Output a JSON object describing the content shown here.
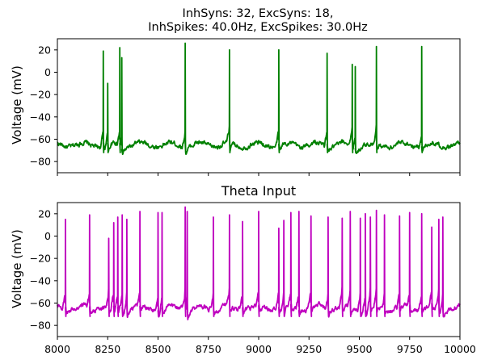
{
  "chart_data": [
    {
      "type": "line",
      "title_lines": [
        "InhSyns: 32, ExcSyns: 18,",
        "InhSpikes: 40.0Hz, ExcSpikes: 30.0Hz"
      ],
      "xlabel": "",
      "ylabel": "Voltage (mV)",
      "xlim": [
        8000,
        10000
      ],
      "ylim": [
        -90,
        30
      ],
      "yticks": [
        20,
        0,
        -20,
        -40,
        -60,
        -80
      ],
      "xticks": [
        8000,
        8250,
        8500,
        8750,
        9000,
        9250,
        9500,
        9750,
        10000
      ],
      "xtick_labels_visible": false,
      "color": "#008000",
      "grid": false,
      "baseline_mv": -65,
      "spikes": [
        {
          "t": 8228,
          "peak": 19
        },
        {
          "t": 8250,
          "peak": -10
        },
        {
          "t": 8310,
          "peak": 22
        },
        {
          "t": 8320,
          "peak": 13
        },
        {
          "t": 8635,
          "peak": 26
        },
        {
          "t": 8855,
          "peak": 20
        },
        {
          "t": 9100,
          "peak": 20
        },
        {
          "t": 9340,
          "peak": 17
        },
        {
          "t": 9465,
          "peak": 7
        },
        {
          "t": 9480,
          "peak": 5
        },
        {
          "t": 9585,
          "peak": 23
        },
        {
          "t": 9810,
          "peak": 23
        }
      ]
    },
    {
      "type": "line",
      "title_lines": [
        "Theta Input"
      ],
      "xlabel": "",
      "ylabel": "Voltage (mV)",
      "xlim": [
        8000,
        10000
      ],
      "ylim": [
        -90,
        30
      ],
      "yticks": [
        20,
        0,
        -20,
        -40,
        -60,
        -80
      ],
      "xticks": [
        8000,
        8250,
        8500,
        8750,
        9000,
        9250,
        9500,
        9750,
        10000
      ],
      "xtick_labels": [
        "8000",
        "8250",
        "8500",
        "8750",
        "9000",
        "9250",
        "9500",
        "9750",
        "10000"
      ],
      "xtick_labels_visible": true,
      "color": "#bf00bf",
      "grid": false,
      "baseline_mv": -64,
      "spikes": [
        {
          "t": 8040,
          "peak": 15
        },
        {
          "t": 8160,
          "peak": 19
        },
        {
          "t": 8255,
          "peak": -2
        },
        {
          "t": 8280,
          "peak": 12
        },
        {
          "t": 8300,
          "peak": 17
        },
        {
          "t": 8322,
          "peak": 19
        },
        {
          "t": 8345,
          "peak": 15
        },
        {
          "t": 8410,
          "peak": 22
        },
        {
          "t": 8500,
          "peak": 21
        },
        {
          "t": 8520,
          "peak": 21
        },
        {
          "t": 8635,
          "peak": 26
        },
        {
          "t": 8645,
          "peak": 22
        },
        {
          "t": 8775,
          "peak": 17
        },
        {
          "t": 8855,
          "peak": 19
        },
        {
          "t": 8920,
          "peak": 13
        },
        {
          "t": 9000,
          "peak": 22
        },
        {
          "t": 9100,
          "peak": 7
        },
        {
          "t": 9125,
          "peak": 14
        },
        {
          "t": 9160,
          "peak": 21
        },
        {
          "t": 9200,
          "peak": 22
        },
        {
          "t": 9260,
          "peak": 18
        },
        {
          "t": 9345,
          "peak": 17
        },
        {
          "t": 9415,
          "peak": 16
        },
        {
          "t": 9455,
          "peak": 22
        },
        {
          "t": 9505,
          "peak": 16
        },
        {
          "t": 9530,
          "peak": 20
        },
        {
          "t": 9555,
          "peak": 17
        },
        {
          "t": 9585,
          "peak": 23
        },
        {
          "t": 9625,
          "peak": 19
        },
        {
          "t": 9700,
          "peak": 18
        },
        {
          "t": 9750,
          "peak": 21
        },
        {
          "t": 9810,
          "peak": 20
        },
        {
          "t": 9860,
          "peak": 8
        },
        {
          "t": 9895,
          "peak": 15
        },
        {
          "t": 9915,
          "peak": 17
        }
      ]
    }
  ]
}
